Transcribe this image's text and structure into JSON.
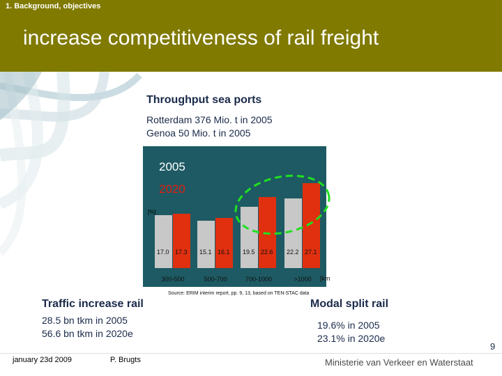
{
  "header": {
    "section": "1. Background,  objectives",
    "title": "increase competitiveness of rail freight"
  },
  "throughput": {
    "heading": "Throughput sea ports",
    "lines": [
      "Rotterdam 376 Mio. t in 2005",
      "Genoa 50 Mio. t in 2005"
    ]
  },
  "chart_data": {
    "type": "bar",
    "legend": [
      "2005",
      "2020"
    ],
    "unit_label": "[%]",
    "categories": [
      "300-500",
      "500-700",
      "700-1000",
      ">1000"
    ],
    "x_unit": "[km",
    "series": [
      {
        "name": "2005",
        "values": [
          17.0,
          15.1,
          19.5,
          22.2
        ],
        "labels": [
          "17.0",
          "15.1",
          "19.5",
          "22.2"
        ],
        "color": "#c8c8c8"
      },
      {
        "name": "2020",
        "values": [
          17.3,
          16.1,
          22.6,
          27.1
        ],
        "labels": [
          "17.3",
          "16.1",
          "22.6",
          "27.1"
        ],
        "color": "#e03010"
      }
    ],
    "source": "Source: ERIM interim report, pp. 9, 13, based on TEN-STAC data",
    "highlight": "dashed green ellipse around 700-1000 and >1000"
  },
  "traffic": {
    "heading": "Traffic increase rail",
    "lines": [
      "28.5 bn tkm in 2005",
      "56.6 bn tkm in 2020e"
    ]
  },
  "modal_split": {
    "heading": "Modal split rail",
    "lines": [
      "19.6% in 2005",
      "23.1% in 2020e"
    ]
  },
  "footer": {
    "date": "january 23d 2009",
    "author": "P. Brugts",
    "ministry": "Ministerie van Verkeer en Waterstaat",
    "page": "9"
  }
}
